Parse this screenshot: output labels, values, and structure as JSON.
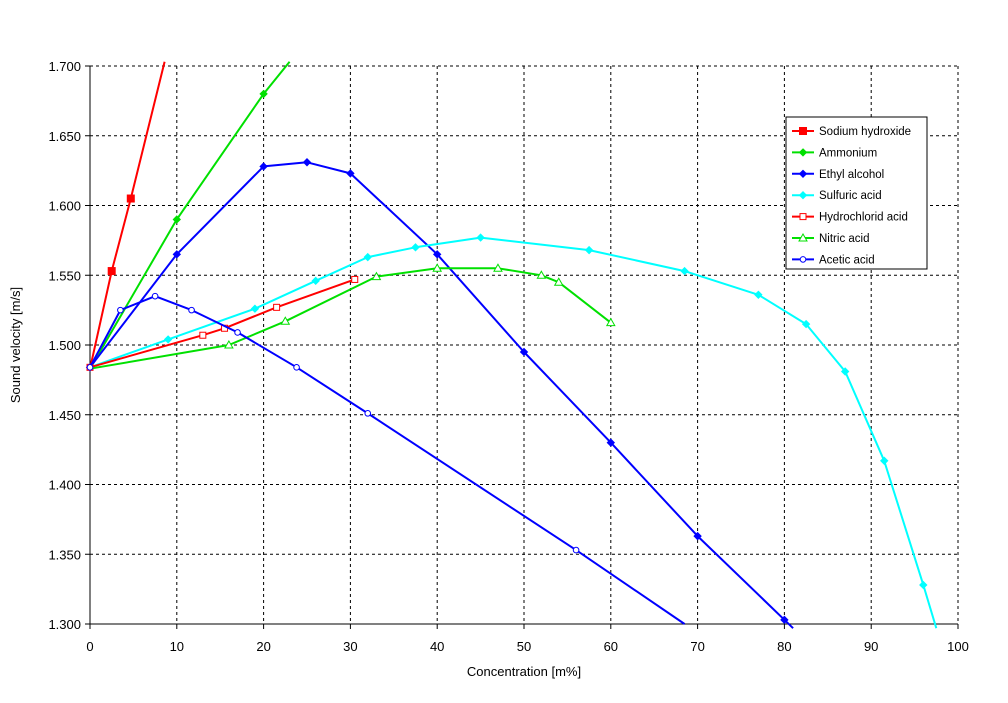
{
  "chart_data": {
    "type": "line",
    "title": "",
    "xlabel": "Concentration [m%]",
    "ylabel": "Sound velocity [m/s]",
    "xlim": [
      0,
      100
    ],
    "ylim": [
      1300,
      1700
    ],
    "x_ticks": [
      0,
      10,
      20,
      30,
      40,
      50,
      60,
      70,
      80,
      90,
      100
    ],
    "y_ticks": [
      1300,
      1350,
      1400,
      1450,
      1500,
      1550,
      1600,
      1650,
      1700
    ],
    "x_tick_labels": [
      "0",
      "10",
      "20",
      "30",
      "40",
      "50",
      "60",
      "70",
      "80",
      "90",
      "100"
    ],
    "y_tick_labels": [
      "1.300",
      "1.350",
      "1.400",
      "1.450",
      "1.500",
      "1.550",
      "1.600",
      "1.650",
      "1.700"
    ],
    "grid": true,
    "grid_style": "dashed",
    "legend_position": "right",
    "series": [
      {
        "name": "Sodium hydroxide",
        "color": "#ff0000",
        "marker": "square-filled",
        "x": [
          0,
          2.5,
          4.7,
          8.6
        ],
        "y": [
          1483,
          1553,
          1605,
          1703
        ],
        "marked": [
          false,
          true,
          true,
          false
        ]
      },
      {
        "name": "Ammonium",
        "color": "#00e000",
        "marker": "diamond-filled",
        "x": [
          0,
          10,
          20,
          23
        ],
        "y": [
          1483,
          1590,
          1680,
          1703
        ],
        "marked": [
          false,
          true,
          true,
          false
        ]
      },
      {
        "name": "Ethyl alcohol",
        "color": "#0000ff",
        "marker": "diamond-filled",
        "x": [
          0,
          10,
          20,
          25,
          30,
          40,
          50,
          60,
          70,
          80,
          81
        ],
        "y": [
          1484,
          1565,
          1628,
          1631,
          1623,
          1565,
          1495,
          1430,
          1363,
          1303,
          1297
        ],
        "marked": [
          true,
          true,
          true,
          true,
          true,
          true,
          true,
          true,
          true,
          true,
          false
        ]
      },
      {
        "name": "Sulfuric acid",
        "color": "#00ffff",
        "marker": "diamond-filled",
        "x": [
          0,
          9,
          19,
          26,
          32,
          37.5,
          45,
          57.5,
          68.5,
          77,
          82.5,
          87,
          91.5,
          96,
          97.5
        ],
        "y": [
          1484,
          1504,
          1526,
          1546,
          1563,
          1570,
          1577,
          1568,
          1553,
          1536,
          1515,
          1481,
          1417,
          1328,
          1297
        ],
        "marked": [
          false,
          true,
          true,
          true,
          true,
          true,
          true,
          true,
          true,
          true,
          true,
          true,
          true,
          true,
          false
        ]
      },
      {
        "name": "Hydrochlorid acid",
        "color": "#ff0000",
        "marker": "square-open",
        "x": [
          0,
          13,
          15.5,
          21.5,
          30.5
        ],
        "y": [
          1484,
          1507,
          1512,
          1527,
          1547
        ],
        "marked": [
          true,
          true,
          true,
          true,
          true
        ]
      },
      {
        "name": "Nitric acid",
        "color": "#00e000",
        "marker": "triangle-open",
        "x": [
          0,
          16,
          22.5,
          33,
          40,
          47,
          52,
          54,
          60
        ],
        "y": [
          1483,
          1500,
          1517,
          1549,
          1555,
          1555,
          1550,
          1545,
          1516
        ],
        "marked": [
          false,
          true,
          true,
          true,
          true,
          true,
          true,
          true,
          true
        ]
      },
      {
        "name": "Acetic acid",
        "color": "#0000ff",
        "marker": "circle-open",
        "x": [
          0,
          3.5,
          7.5,
          11.7,
          17,
          23.8,
          32,
          56,
          68.5
        ],
        "y": [
          1484,
          1525,
          1535,
          1525,
          1509,
          1484,
          1451,
          1353,
          1300
        ],
        "marked": [
          true,
          true,
          true,
          true,
          true,
          true,
          true,
          true,
          false
        ]
      }
    ]
  }
}
